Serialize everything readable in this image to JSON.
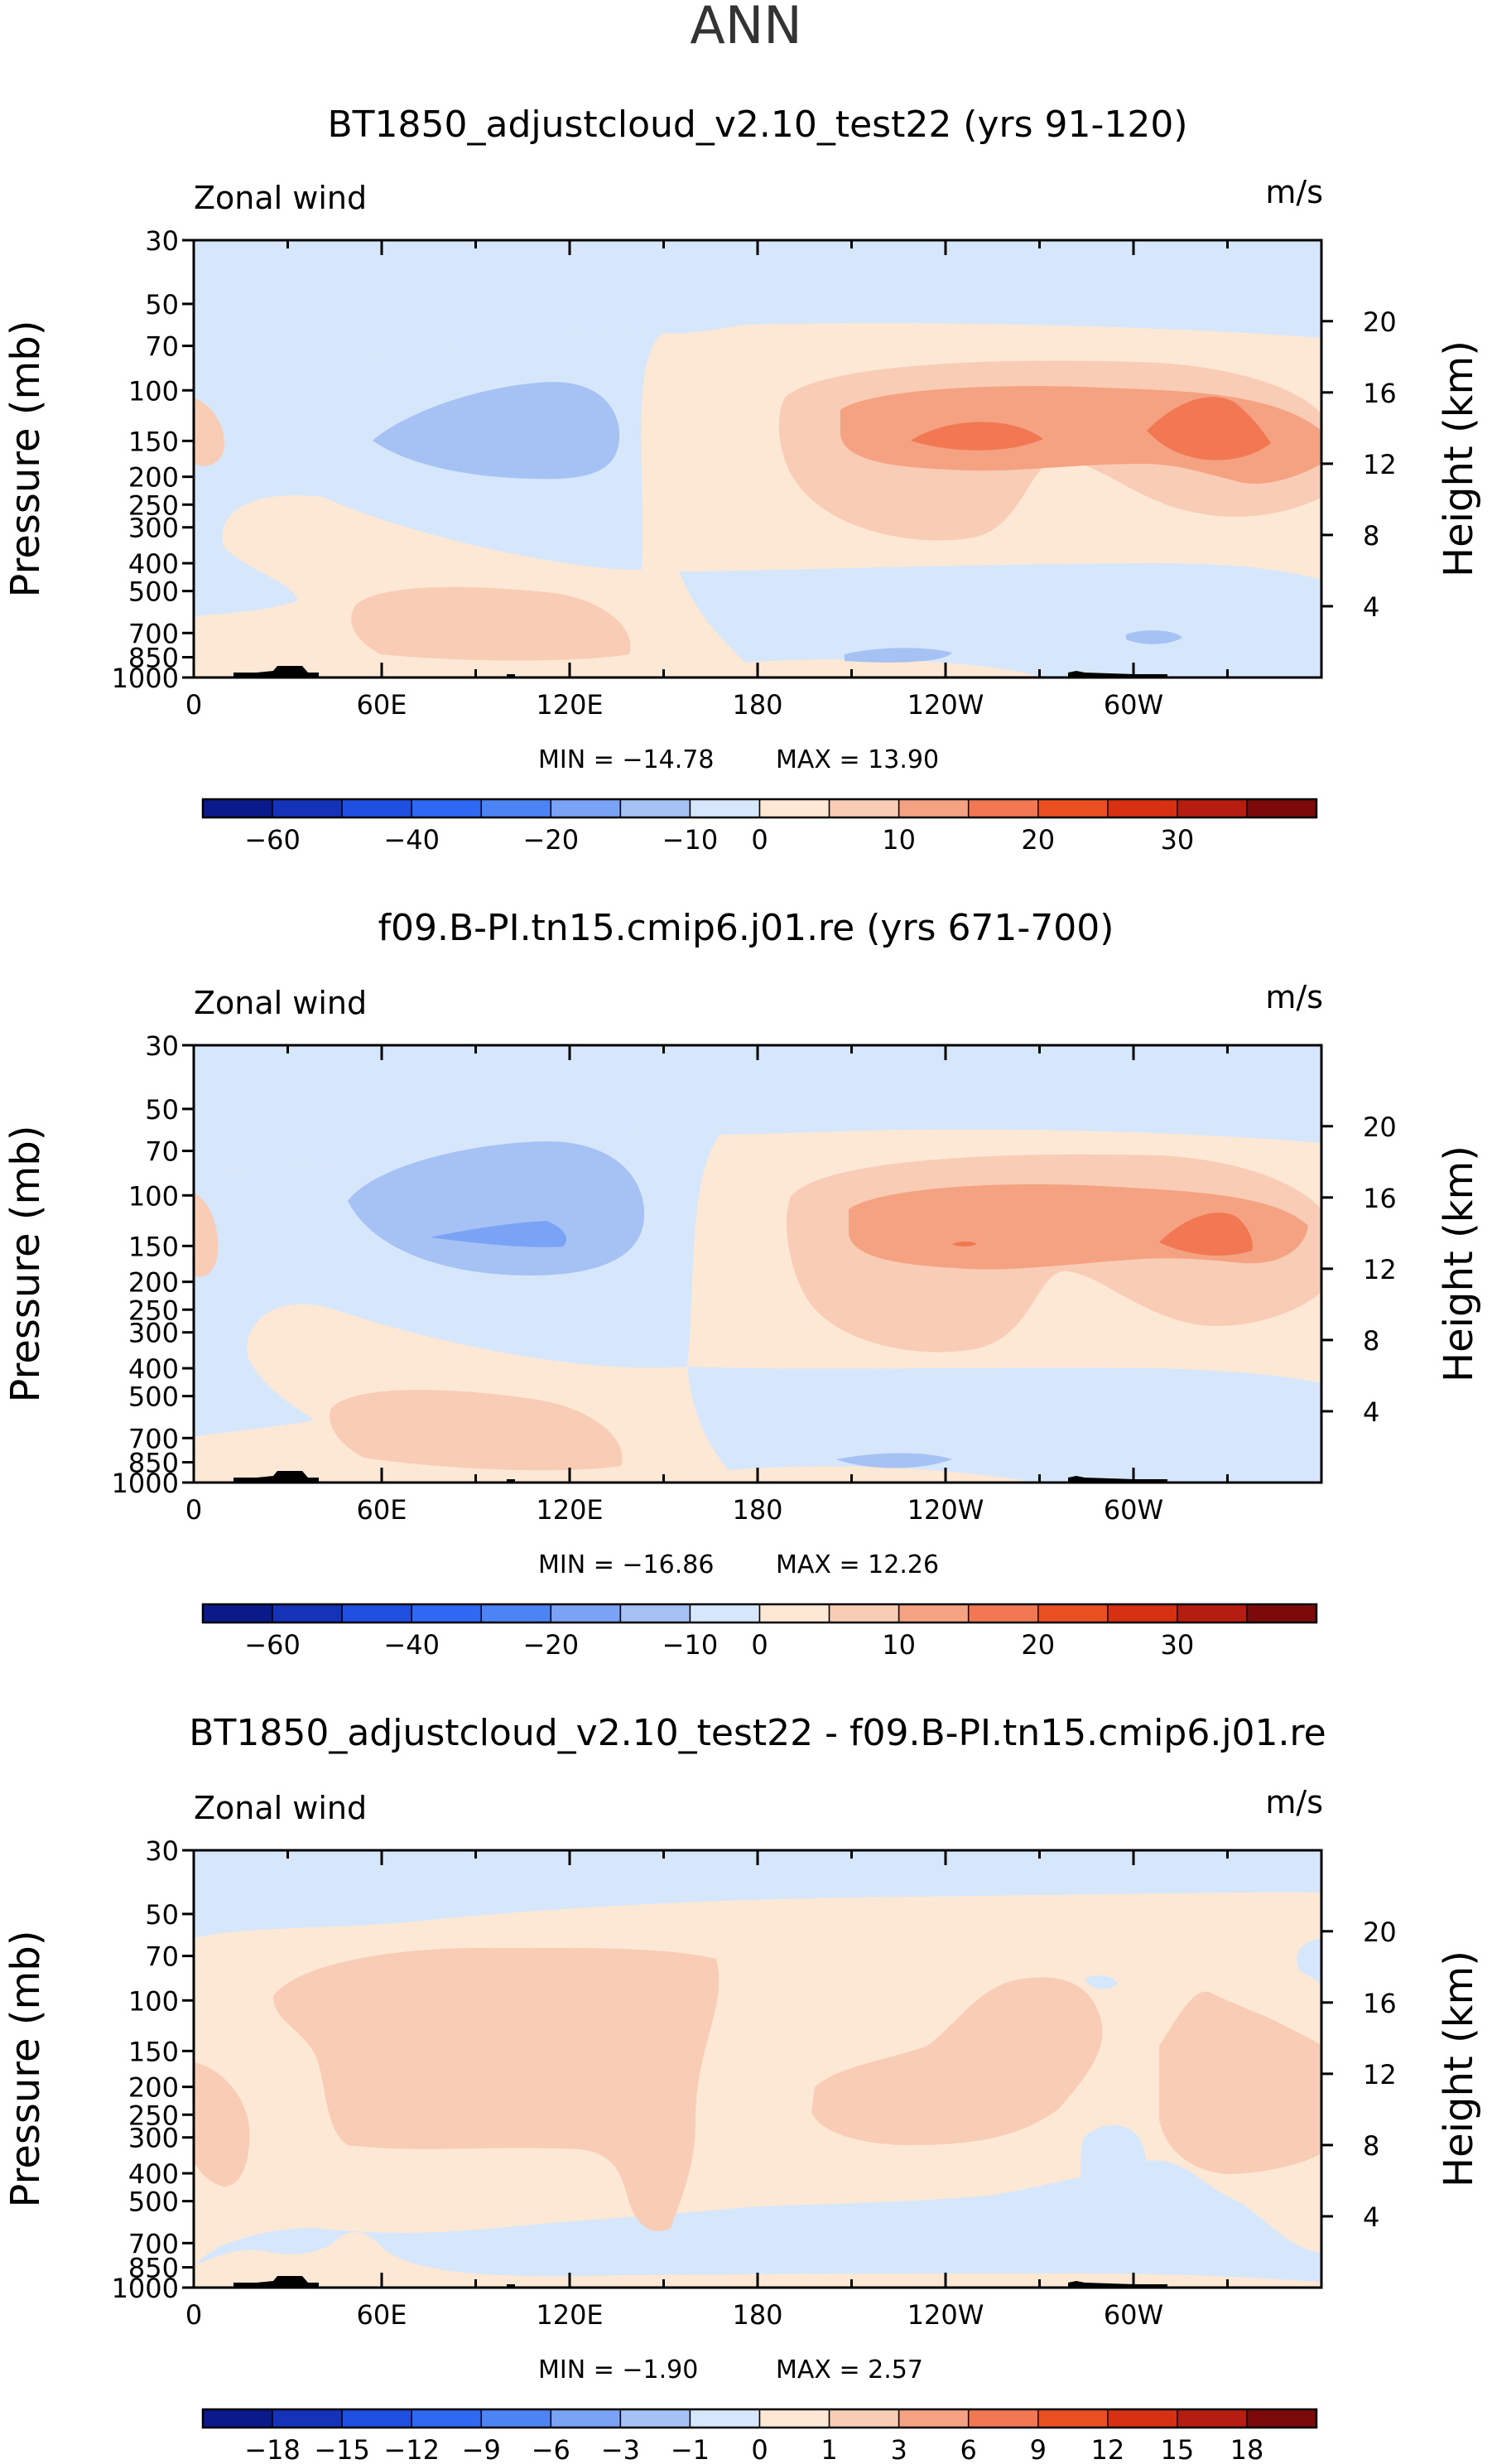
{
  "page_title": "ANN",
  "colors": {
    "neg": [
      "#0b1a8a",
      "#1533b8",
      "#1f4fe0",
      "#2f68f2",
      "#4d84f5",
      "#7aa3f6",
      "#a6c2f4",
      "#d6e7fb"
    ],
    "pos": [
      "#fde8d6",
      "#f9ccb5",
      "#f5a283",
      "#f17852",
      "#ea4f22",
      "#d63112",
      "#b51d10",
      "#7d0a0a"
    ],
    "terrain": "#000000"
  },
  "chart_data": [
    {
      "type": "heatmap",
      "title": "BT1850_adjustcloud_v2.10_test22 (yrs 91-120)",
      "variable_label": "Zonal wind",
      "units_label": "m/s",
      "ylabel_left": "Pressure (mb)",
      "ylabel_right": "Height (km)",
      "pressure_ticks": [
        "30",
        "50",
        "70",
        "100",
        "150",
        "200",
        "250",
        "300",
        "400",
        "500",
        "700",
        "850",
        "1000"
      ],
      "height_ticks": [
        "20",
        "16",
        "12",
        "8",
        "4"
      ],
      "lon_ticks": [
        "0",
        "60E",
        "120E",
        "180",
        "120W",
        "60W"
      ],
      "min_label": "MIN = −14.78",
      "max_label": "MAX =  13.90",
      "min": -14.78,
      "max": 13.9,
      "colorbar_labels": [
        "−60",
        "−40",
        "−20",
        "−10",
        "0",
        "10",
        "20",
        "30"
      ]
    },
    {
      "type": "heatmap",
      "title": "f09.B-PI.tn15.cmip6.j01.re (yrs 671-700)",
      "variable_label": "Zonal wind",
      "units_label": "m/s",
      "ylabel_left": "Pressure (mb)",
      "ylabel_right": "Height (km)",
      "pressure_ticks": [
        "30",
        "50",
        "70",
        "100",
        "150",
        "200",
        "250",
        "300",
        "400",
        "500",
        "700",
        "850",
        "1000"
      ],
      "height_ticks": [
        "20",
        "16",
        "12",
        "8",
        "4"
      ],
      "lon_ticks": [
        "0",
        "60E",
        "120E",
        "180",
        "120W",
        "60W"
      ],
      "min_label": "MIN = −16.86",
      "max_label": "MAX =  12.26",
      "min": -16.86,
      "max": 12.26,
      "colorbar_labels": [
        "−60",
        "−40",
        "−20",
        "−10",
        "0",
        "10",
        "20",
        "30"
      ]
    },
    {
      "type": "heatmap",
      "title": "BT1850_adjustcloud_v2.10_test22 - f09.B-PI.tn15.cmip6.j01.re",
      "variable_label": "Zonal wind",
      "units_label": "m/s",
      "ylabel_left": "Pressure (mb)",
      "ylabel_right": "Height (km)",
      "pressure_ticks": [
        "30",
        "50",
        "70",
        "100",
        "150",
        "200",
        "250",
        "300",
        "400",
        "500",
        "700",
        "850",
        "1000"
      ],
      "height_ticks": [
        "20",
        "16",
        "12",
        "8",
        "4"
      ],
      "lon_ticks": [
        "0",
        "60E",
        "120E",
        "180",
        "120W",
        "60W"
      ],
      "min_label": "MIN =   −1.90",
      "max_label": "MAX =    2.57",
      "min": -1.9,
      "max": 2.57,
      "colorbar_labels": [
        "−18",
        "−15",
        "−12",
        "−9",
        "−6",
        "−3",
        "−1",
        "0",
        "1",
        "3",
        "6",
        "9",
        "12",
        "15",
        "18"
      ]
    }
  ]
}
